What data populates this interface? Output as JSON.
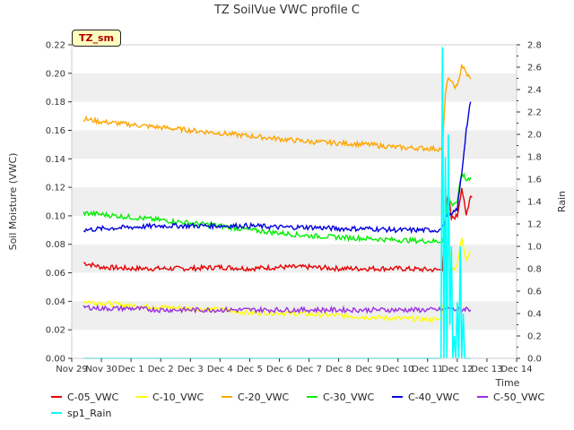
{
  "chart_data": {
    "type": "line",
    "title": "TZ SoilVue VWC profile C",
    "badge": "TZ_sm",
    "xlabel": "Time",
    "ylabel": "Soil Moisture (VWC)",
    "y2label": "Rain",
    "xlim": [
      0,
      15
    ],
    "ylim": [
      0,
      0.22
    ],
    "y2lim": [
      0,
      2.8
    ],
    "x_tick_labels": [
      "Nov 29",
      "Nov 30",
      "Dec 1",
      "Dec 2",
      "Dec 3",
      "Dec 4",
      "Dec 5",
      "Dec 6",
      "Dec 7",
      "Dec 8",
      "Dec 9",
      "Dec 10",
      "Dec 11",
      "Dec 12",
      "Dec 13",
      "Dec 14"
    ],
    "y_ticks": [
      "0.00",
      "0.02",
      "0.04",
      "0.06",
      "0.08",
      "0.10",
      "0.12",
      "0.14",
      "0.16",
      "0.18",
      "0.20",
      "0.22"
    ],
    "y2_ticks": [
      "0.0",
      "0.2",
      "0.4",
      "0.6",
      "0.8",
      "1.0",
      "1.2",
      "1.4",
      "1.6",
      "1.8",
      "2.0",
      "2.2",
      "2.4",
      "2.6",
      "2.8"
    ],
    "grid": "horizontal bands",
    "legend_position": "bottom",
    "series": [
      {
        "name": "C-05_VWC",
        "color": "#e60000",
        "axis": "left",
        "x": [
          0.4,
          1,
          2,
          3,
          4,
          5,
          6,
          7,
          8,
          9,
          10,
          11,
          12.4,
          12.5,
          12.6,
          12.7,
          12.8,
          13.0,
          13.15,
          13.3,
          13.45,
          13.5
        ],
        "y": [
          0.067,
          0.064,
          0.063,
          0.063,
          0.063,
          0.064,
          0.063,
          0.064,
          0.064,
          0.063,
          0.063,
          0.063,
          0.062,
          0.063,
          0.105,
          0.115,
          0.098,
          0.1,
          0.12,
          0.1,
          0.115,
          0.113
        ]
      },
      {
        "name": "C-10_VWC",
        "color": "#ffff00",
        "axis": "left",
        "x": [
          0.4,
          1,
          2,
          3,
          4,
          5,
          6,
          7,
          8,
          9,
          10,
          11,
          12.4,
          12.5,
          12.6,
          12.7,
          12.8,
          13.0,
          13.15,
          13.3,
          13.45
        ],
        "y": [
          0.04,
          0.039,
          0.037,
          0.036,
          0.035,
          0.034,
          0.032,
          0.032,
          0.031,
          0.03,
          0.029,
          0.028,
          0.027,
          0.033,
          0.05,
          0.09,
          0.062,
          0.065,
          0.085,
          0.07,
          0.075
        ]
      },
      {
        "name": "C-20_VWC",
        "color": "#ffa500",
        "axis": "left",
        "x": [
          0.4,
          1,
          2,
          3,
          4,
          5,
          6,
          7,
          8,
          9,
          10,
          11,
          12.4,
          12.5,
          12.6,
          12.7,
          12.8,
          13.0,
          13.15,
          13.3,
          13.45
        ],
        "y": [
          0.168,
          0.166,
          0.164,
          0.162,
          0.16,
          0.158,
          0.156,
          0.154,
          0.152,
          0.151,
          0.15,
          0.148,
          0.147,
          0.148,
          0.185,
          0.198,
          0.193,
          0.19,
          0.206,
          0.2,
          0.196
        ]
      },
      {
        "name": "C-30_VWC",
        "color": "#00ee00",
        "axis": "left",
        "x": [
          0.4,
          1,
          2,
          3,
          4,
          5,
          6,
          7,
          8,
          9,
          10,
          11,
          12.4,
          12.5,
          12.6,
          12.7,
          12.8,
          13.0,
          13.15,
          13.3,
          13.45
        ],
        "y": [
          0.102,
          0.101,
          0.099,
          0.097,
          0.095,
          0.093,
          0.09,
          0.088,
          0.086,
          0.085,
          0.084,
          0.083,
          0.082,
          0.083,
          0.095,
          0.115,
          0.108,
          0.11,
          0.13,
          0.125,
          0.127
        ]
      },
      {
        "name": "C-40_VWC",
        "color": "#0000dd",
        "axis": "left",
        "x": [
          0.4,
          1,
          2,
          3,
          4,
          5,
          6,
          7,
          8,
          9,
          10,
          11,
          12.4,
          12.5,
          12.6,
          12.7,
          12.8,
          13.0,
          13.15,
          13.3,
          13.45
        ],
        "y": [
          0.09,
          0.091,
          0.092,
          0.093,
          0.093,
          0.093,
          0.093,
          0.092,
          0.092,
          0.091,
          0.091,
          0.09,
          0.09,
          0.092,
          0.098,
          0.1,
          0.1,
          0.105,
          0.13,
          0.16,
          0.18
        ]
      },
      {
        "name": "C-50_VWC",
        "color": "#9a30e0",
        "axis": "left",
        "x": [
          0.4,
          1,
          2,
          3,
          4,
          5,
          6,
          7,
          8,
          9,
          10,
          11,
          12.4,
          12.5,
          12.6,
          12.7,
          12.8,
          13.0,
          13.15,
          13.3,
          13.45
        ],
        "y": [
          0.036,
          0.035,
          0.035,
          0.034,
          0.034,
          0.034,
          0.034,
          0.034,
          0.034,
          0.034,
          0.034,
          0.034,
          0.034,
          0.034,
          0.034,
          0.035,
          0.035,
          0.034,
          0.034,
          0.035,
          0.034
        ]
      },
      {
        "name": "sp1_Rain",
        "color": "#00ffff",
        "axis": "right",
        "x": [
          0.4,
          12.3,
          12.45,
          12.5,
          12.55,
          12.6,
          12.65,
          12.7,
          12.75,
          12.8,
          12.85,
          12.9,
          12.95,
          13.0,
          13.05,
          13.1,
          13.15,
          13.2,
          13.25,
          13.3,
          13.35,
          13.4,
          13.45
        ],
        "y": [
          0.0,
          0.0,
          0.0,
          2.78,
          0.0,
          1.8,
          0.0,
          2.0,
          0.3,
          1.0,
          0.0,
          0.2,
          0.0,
          0.5,
          0.0,
          1.0,
          0.0,
          0.4,
          0.0,
          0.0,
          0.0,
          0.0,
          0.0
        ]
      }
    ]
  }
}
